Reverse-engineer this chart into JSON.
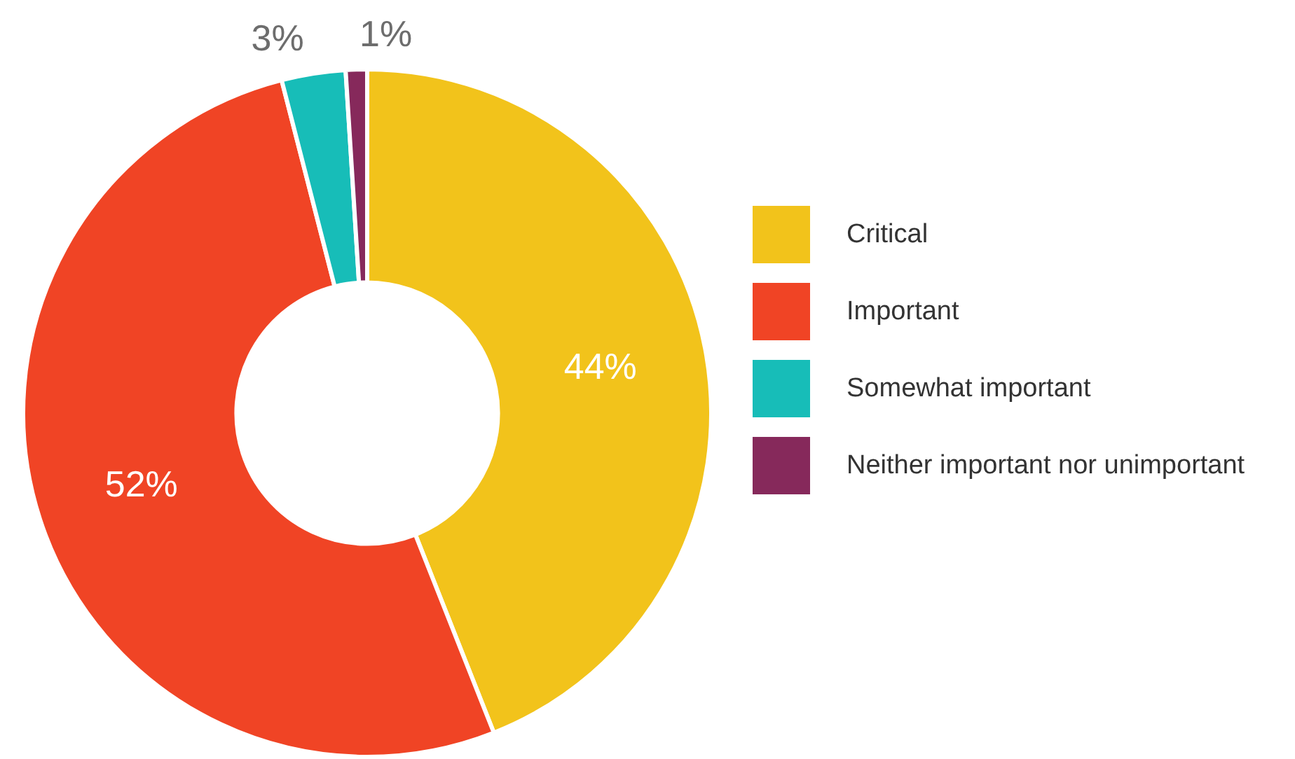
{
  "chart_data": {
    "type": "donut",
    "categories": [
      "Critical",
      "Important",
      "Somewhat important",
      "Neither important nor unimportant"
    ],
    "values": [
      44,
      52,
      3,
      1
    ],
    "colors": [
      "#f2c31b",
      "#f04425",
      "#17bdb8",
      "#86295b"
    ],
    "value_labels": [
      "44%",
      "52%",
      "3%",
      "1%"
    ],
    "legend": "right"
  }
}
